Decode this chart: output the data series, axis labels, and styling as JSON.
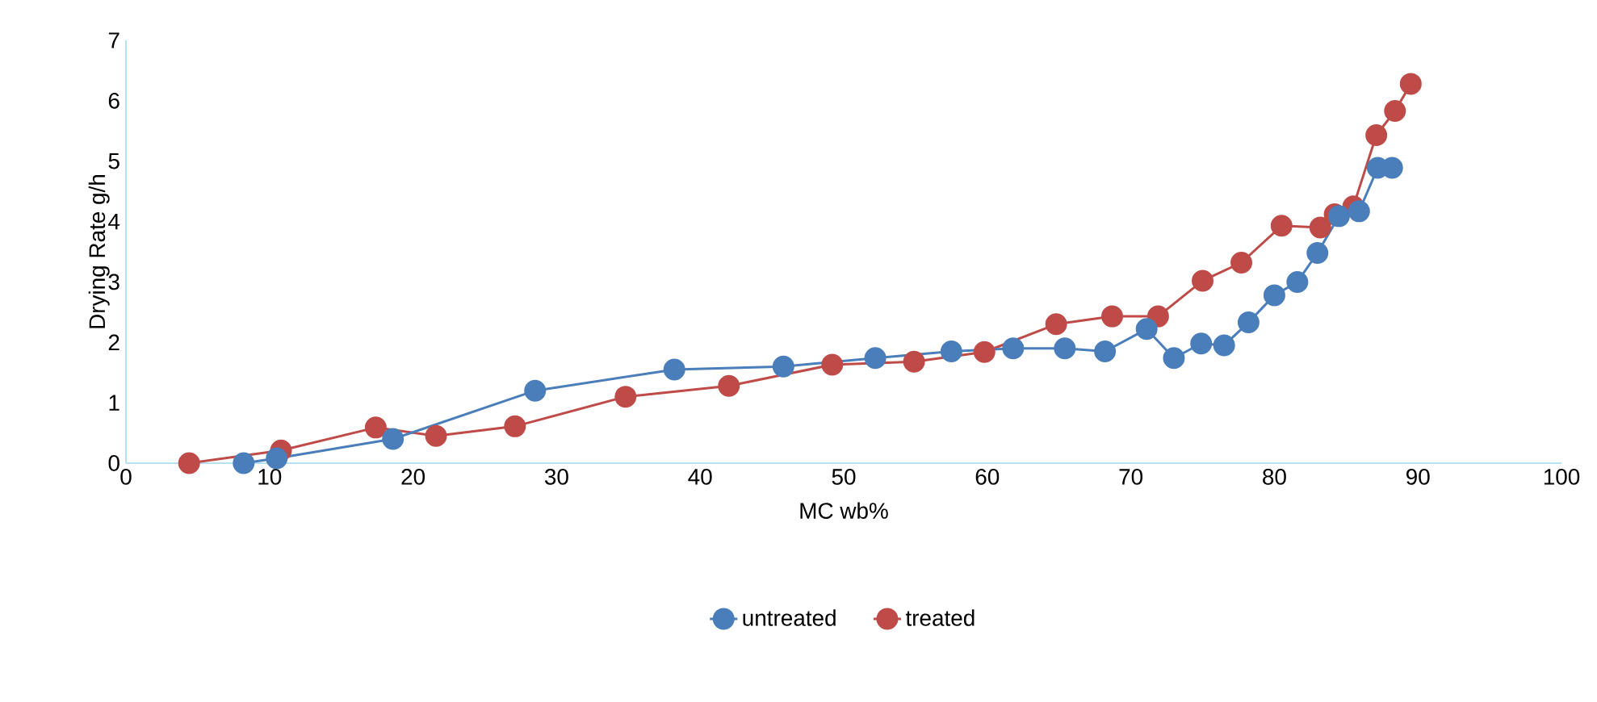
{
  "chart_data": {
    "type": "line",
    "xlabel": "MC wb%",
    "ylabel": "Drying  Rate g/h",
    "xlim": [
      0,
      100
    ],
    "ylim": [
      0,
      7
    ],
    "xticks": [
      0,
      10,
      20,
      30,
      40,
      50,
      60,
      70,
      80,
      90,
      100
    ],
    "yticks": [
      0,
      1,
      2,
      3,
      4,
      5,
      6,
      7
    ],
    "marker": "circle",
    "legend": "bottom",
    "grid": false,
    "series": [
      {
        "name": "untreated",
        "color": "#4a7ebb",
        "x": [
          8.2,
          10.5,
          18.6,
          28.5,
          38.2,
          45.8,
          52.2,
          57.5,
          61.8,
          65.4,
          68.2,
          71.1,
          73,
          74.9,
          76.5,
          78.2,
          80,
          81.6,
          83,
          84.5,
          85.9,
          87.2,
          88.2
        ],
        "values": [
          0,
          0.08,
          0.4,
          1.2,
          1.55,
          1.6,
          1.74,
          1.85,
          1.9,
          1.9,
          1.85,
          2.22,
          1.74,
          1.98,
          1.95,
          2.33,
          2.78,
          3,
          3.48,
          4.09,
          4.17,
          4.89,
          4.89
        ]
      },
      {
        "name": "treated",
        "color": "#be4b48",
        "x": [
          4.4,
          10.8,
          17.4,
          21.6,
          27.1,
          34.8,
          42,
          49.2,
          54.9,
          59.8,
          64.8,
          68.7,
          71.9,
          75,
          77.7,
          80.5,
          83.2,
          84.2,
          85.5,
          87.1,
          88.4,
          89.5
        ],
        "values": [
          0,
          0.21,
          0.59,
          0.45,
          0.61,
          1.1,
          1.28,
          1.63,
          1.68,
          1.84,
          2.3,
          2.43,
          2.43,
          3.02,
          3.32,
          3.93,
          3.9,
          4.12,
          4.25,
          5.43,
          5.83,
          6.28
        ]
      }
    ]
  }
}
